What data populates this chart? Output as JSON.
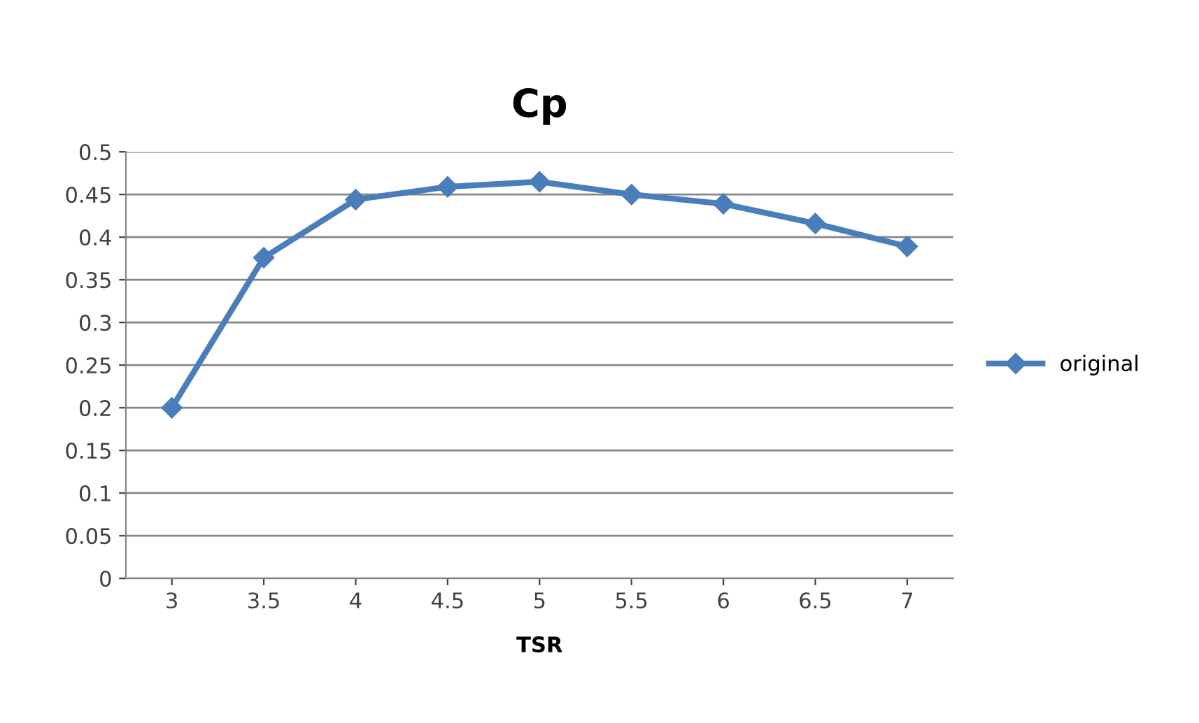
{
  "chart_data": {
    "type": "line",
    "title": "Cp",
    "xlabel": "TSR",
    "categories": [
      "3",
      "3.5",
      "4",
      "4.5",
      "5",
      "5.5",
      "6",
      "6.5",
      "7"
    ],
    "series": [
      {
        "name": "original",
        "color": "#4a7ebb",
        "values": [
          0.2,
          0.376,
          0.444,
          0.459,
          0.465,
          0.45,
          0.439,
          0.416,
          0.389
        ]
      }
    ],
    "ylim": [
      0,
      0.5
    ],
    "yticks": [
      0,
      0.05,
      0.1,
      0.15,
      0.2,
      0.25,
      0.3,
      0.35,
      0.4,
      0.45,
      0.5
    ],
    "grid": "y",
    "legend": "right",
    "marker": "diamond",
    "line_style": "solid"
  }
}
